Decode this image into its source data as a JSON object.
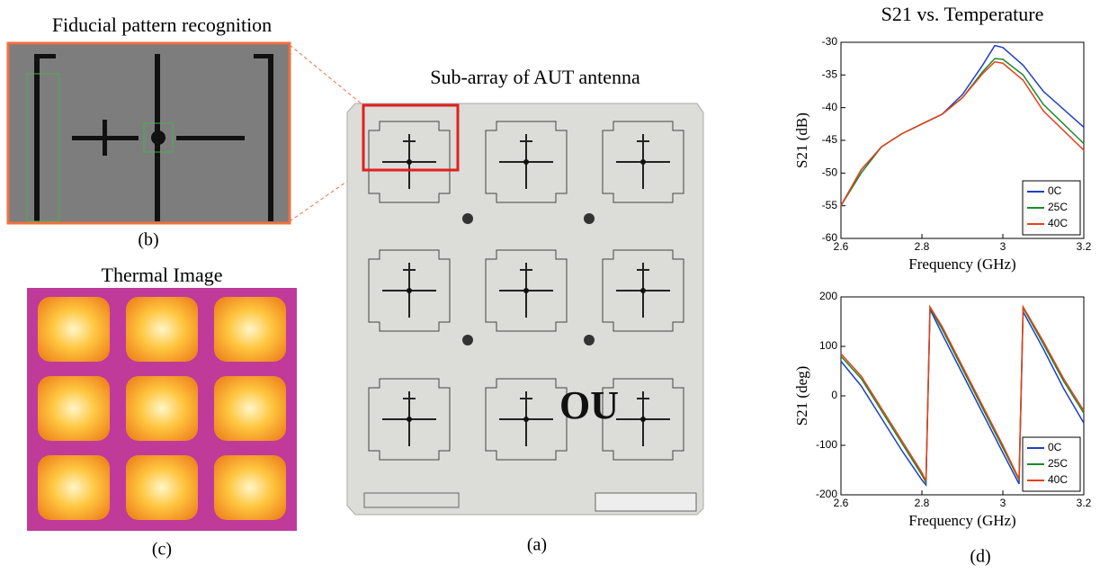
{
  "figure": {
    "panel_b": {
      "title": "Fiducial pattern recognition",
      "caption": "(b)"
    },
    "panel_c": {
      "title": "Thermal Image",
      "caption": "(c)"
    },
    "panel_a": {
      "title": "Sub-array of AUT antenna",
      "caption": "(a)"
    },
    "panel_d": {
      "caption": "(d)"
    }
  },
  "chart_data": [
    {
      "type": "line",
      "title": "S21 vs. Temperature",
      "x_label": "Frequency (GHz)",
      "y_label": "S21 (dB)",
      "x": [
        2.6,
        2.65,
        2.7,
        2.75,
        2.8,
        2.85,
        2.9,
        2.95,
        2.98,
        3.0,
        3.05,
        3.1,
        3.2
      ],
      "series": [
        {
          "name": "0C",
          "color": "#1f3fc4",
          "values": [
            -55,
            -49.5,
            -46,
            -44,
            -42.5,
            -41,
            -38,
            -33.5,
            -30.5,
            -30.8,
            -33.5,
            -37.5,
            -43
          ]
        },
        {
          "name": "25C",
          "color": "#1a8a2a",
          "values": [
            -55,
            -50,
            -46,
            -44,
            -42.5,
            -41,
            -38.5,
            -34.5,
            -32.5,
            -32.6,
            -35,
            -39.5,
            -45.5
          ]
        },
        {
          "name": "40C",
          "color": "#e8401c",
          "values": [
            -55,
            -49.5,
            -46,
            -44,
            -42.5,
            -41,
            -38.5,
            -34.8,
            -33,
            -33.2,
            -35.8,
            -40.5,
            -46.5
          ]
        }
      ],
      "xlim": [
        2.6,
        3.2
      ],
      "ylim": [
        -60,
        -30
      ],
      "xticks": [
        2.6,
        2.8,
        3,
        3.2
      ],
      "yticks": [
        -60,
        -55,
        -50,
        -45,
        -40,
        -35,
        -30
      ],
      "grid": false,
      "legend": "lower-right"
    },
    {
      "type": "line",
      "x_label": "Frequency (GHz)",
      "y_label": "S21 (deg)",
      "x": [
        2.6,
        2.65,
        2.7,
        2.75,
        2.8,
        2.81,
        2.82,
        2.85,
        2.9,
        2.95,
        3.0,
        3.04,
        3.05,
        3.1,
        3.15,
        3.2
      ],
      "series": [
        {
          "name": "0C",
          "color": "#1f3fc4",
          "values": [
            70,
            20,
            -45,
            -110,
            -170,
            -180,
            175,
            125,
            45,
            -35,
            -115,
            -178,
            170,
            95,
            15,
            -55
          ]
        },
        {
          "name": "25C",
          "color": "#1a8a2a",
          "values": [
            80,
            35,
            -30,
            -95,
            -160,
            -175,
            178,
            135,
            55,
            -25,
            -105,
            -170,
            178,
            105,
            30,
            -35
          ]
        },
        {
          "name": "40C",
          "color": "#e8401c",
          "values": [
            85,
            40,
            -25,
            -90,
            -155,
            -172,
            180,
            140,
            60,
            -20,
            -100,
            -168,
            180,
            110,
            35,
            -30
          ]
        }
      ],
      "xlim": [
        2.6,
        3.2
      ],
      "ylim": [
        -200,
        200
      ],
      "xticks": [
        2.6,
        2.8,
        3,
        3.2
      ],
      "yticks": [
        -200,
        -100,
        0,
        100,
        200
      ],
      "grid": false,
      "legend": "lower-right"
    }
  ]
}
